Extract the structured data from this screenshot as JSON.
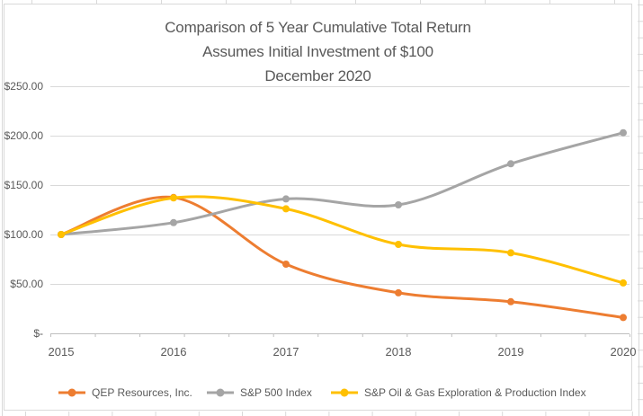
{
  "chart_data": {
    "type": "line",
    "title": "Comparison of 5 Year Cumulative Total Return",
    "subtitle": "Assumes Initial Investment of $100",
    "date_line": "December 2020",
    "categories": [
      "2015",
      "2016",
      "2017",
      "2018",
      "2019",
      "2020"
    ],
    "series": [
      {
        "name": "QEP Resources, Inc.",
        "color": "#ED7D31",
        "values": [
          100,
          137.5,
          70,
          41,
          32,
          16
        ]
      },
      {
        "name": "S&P 500 Index",
        "color": "#A5A5A5",
        "values": [
          100,
          112,
          136,
          130,
          171.5,
          203
        ]
      },
      {
        "name": "S&P Oil & Gas Exploration & Production Index",
        "color": "#FFC000",
        "values": [
          100,
          137,
          126,
          90,
          81.5,
          51
        ]
      }
    ],
    "y_axis": {
      "tick_labels": [
        "$250.00",
        "$200.00",
        "$150.00",
        "$100.00",
        "$50.00",
        "$-"
      ],
      "tick_values": [
        250,
        200,
        150,
        100,
        50,
        0
      ],
      "ylim": [
        0,
        250
      ]
    },
    "grid": true,
    "smooth": true,
    "legend_position": "bottom"
  },
  "colors": {
    "background": "#FFFFFF",
    "gridline": "#D9D9D9",
    "axis_line": "#BFBFBF",
    "sheet_gridline": "#D9D9D9",
    "text": "#595959"
  }
}
